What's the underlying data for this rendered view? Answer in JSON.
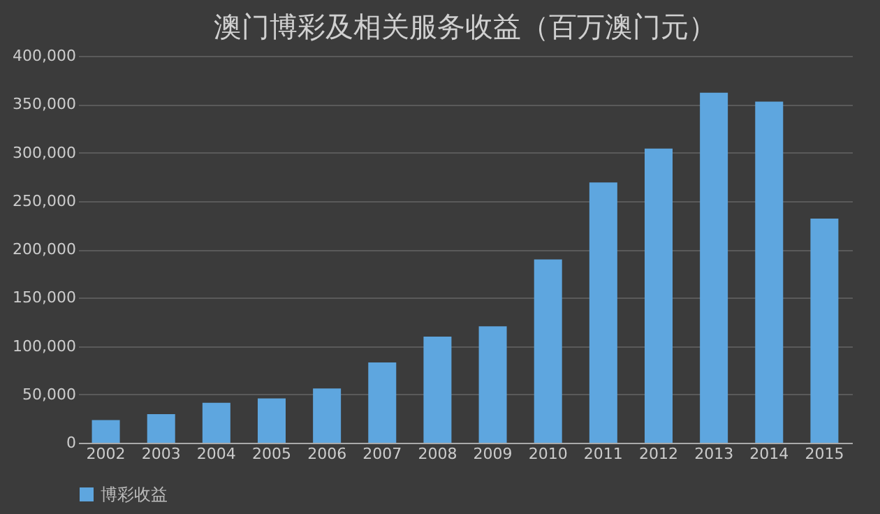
{
  "chart_data": {
    "type": "bar",
    "title": "澳门博彩及相关服务收益（百万澳门元）",
    "categories": [
      "2002",
      "2003",
      "2004",
      "2005",
      "2006",
      "2007",
      "2008",
      "2009",
      "2010",
      "2011",
      "2012",
      "2013",
      "2014",
      "2015"
    ],
    "series": [
      {
        "name": "博彩收益",
        "color": "#5ea6df",
        "values": [
          23500,
          29600,
          41400,
          45800,
          56200,
          83000,
          109800,
          120400,
          189600,
          269100,
          304100,
          361900,
          352700,
          231800
        ]
      }
    ],
    "ylim": [
      0,
      400000
    ],
    "yticks": [
      0,
      {
        "value": 50000,
        "label": "50,000"
      },
      {
        "value": 100000,
        "label": "100,000"
      },
      {
        "value": 150000,
        "label": "150,000"
      },
      {
        "value": 200000,
        "label": "200,000"
      },
      {
        "value": 250000,
        "label": "250,000"
      },
      {
        "value": 300000,
        "label": "300,000"
      },
      {
        "value": 350000,
        "label": "350,000"
      },
      {
        "value": 400000,
        "label": "400,000"
      }
    ],
    "grid": "y",
    "legend": "bottom"
  }
}
